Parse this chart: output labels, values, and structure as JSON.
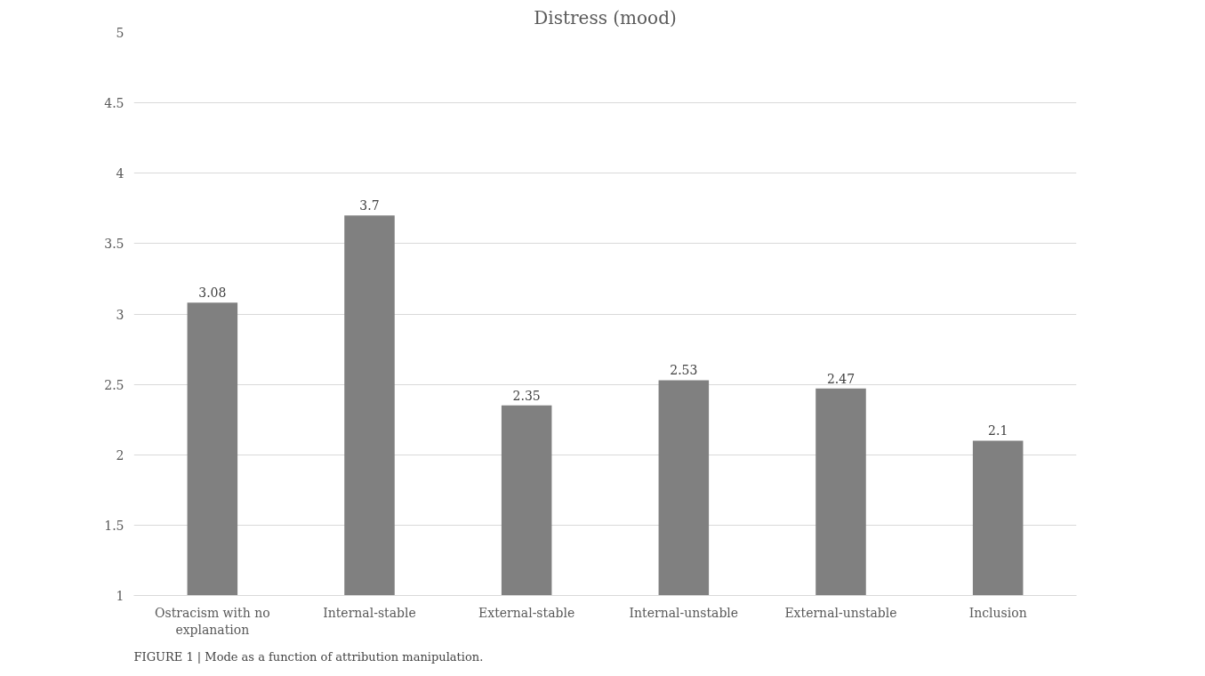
{
  "chart_data": {
    "type": "bar",
    "title": "Distress (mood)",
    "categories": [
      "Ostracism with no explanation",
      "Internal-stable",
      "External-stable",
      "Internal-unstable",
      "External-unstable",
      "Inclusion"
    ],
    "values": [
      3.08,
      3.7,
      2.35,
      2.53,
      2.47,
      2.1
    ],
    "color": "#808080",
    "ylim": [
      1,
      5
    ],
    "yticks": [
      1,
      1.5,
      2,
      2.5,
      3,
      3.5,
      4,
      4.5,
      5
    ],
    "grid": "y",
    "data_labels": true,
    "annotations": [
      "FIGURE 1 | Mode as a function of attribution manipulation."
    ]
  }
}
